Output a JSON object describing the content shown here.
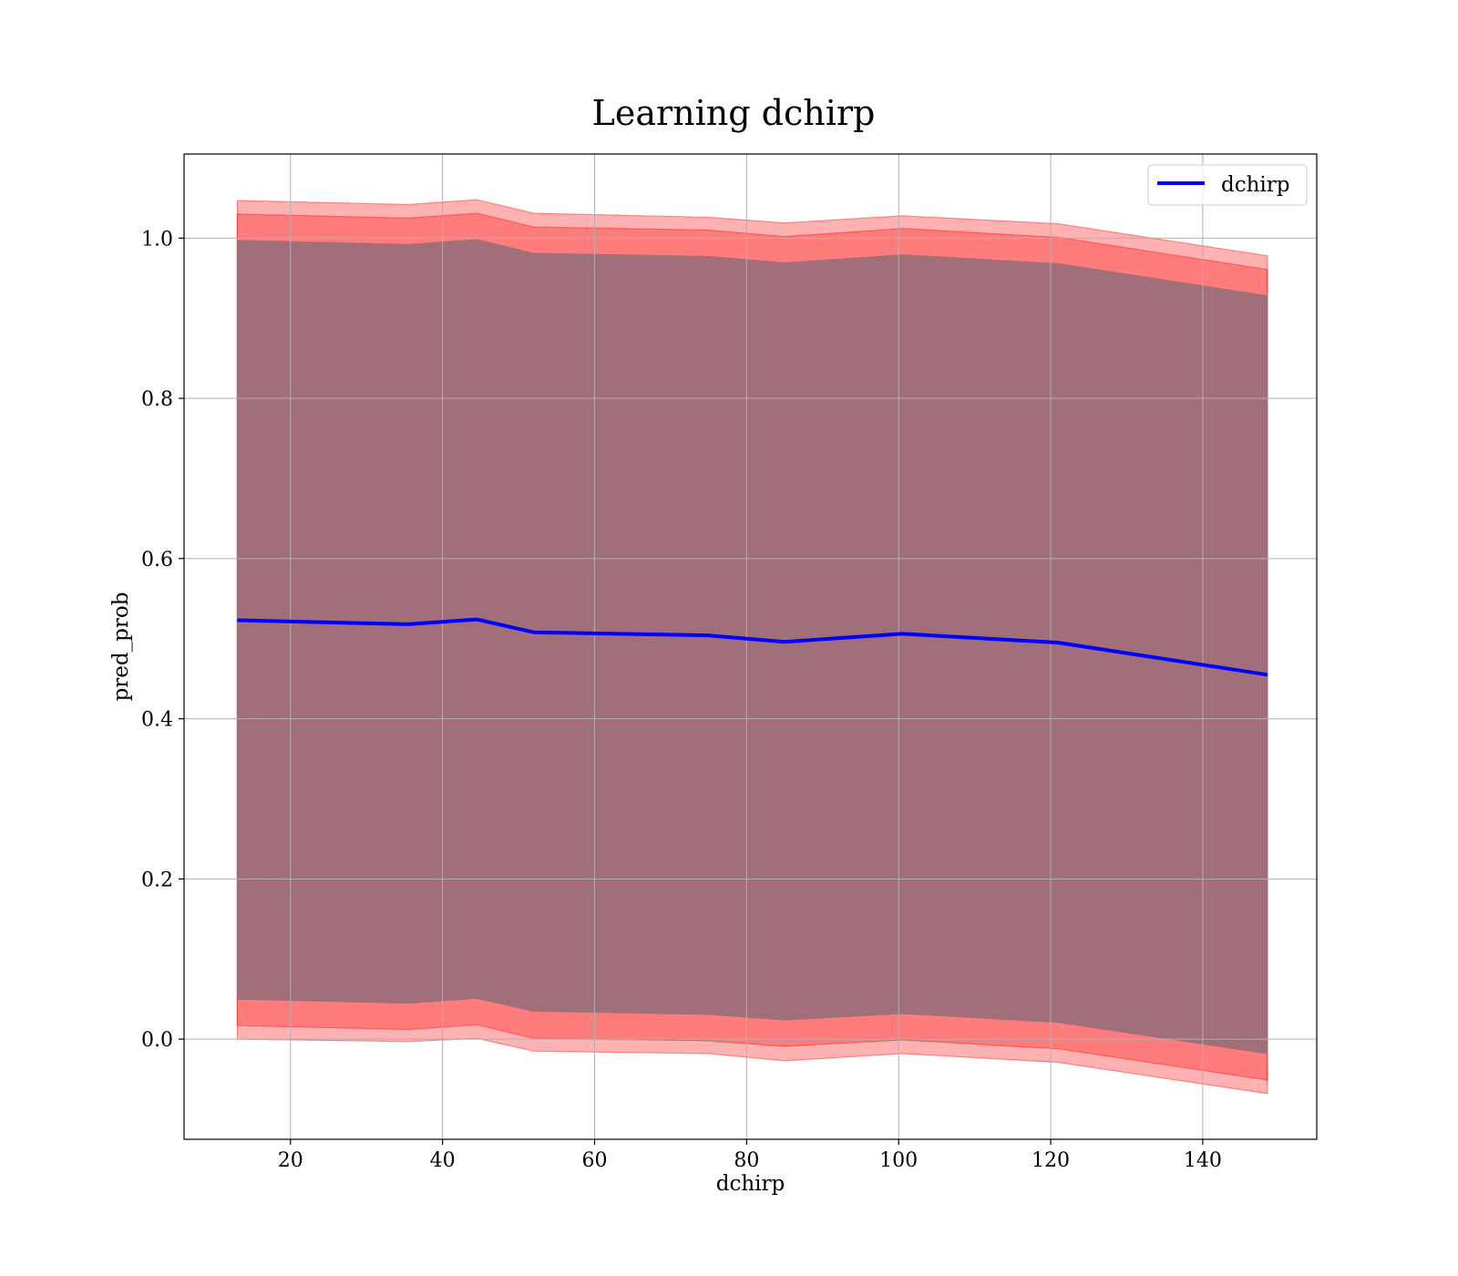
{
  "chart_data": {
    "type": "line",
    "title": "Learning dchirp",
    "xlabel": "dchirp",
    "ylabel": "pred_prob",
    "xlim": [
      6,
      155
    ],
    "ylim": [
      -0.125,
      1.105
    ],
    "xticks": [
      20,
      40,
      60,
      80,
      100,
      120,
      140
    ],
    "yticks": [
      0.0,
      0.2,
      0.4,
      0.6,
      0.8,
      1.0
    ],
    "grid": true,
    "legend_position": "top-right",
    "x": [
      13,
      35.5,
      44.5,
      52,
      75,
      85,
      100.5,
      121,
      148.5
    ],
    "series": [
      {
        "name": "dchirp",
        "color": "#0000ff",
        "values": [
          0.523,
          0.518,
          0.524,
          0.508,
          0.504,
          0.496,
          0.506,
          0.495,
          0.455
        ]
      }
    ],
    "bands": [
      {
        "color": "#ff0000",
        "opacity": 0.3,
        "lower": [
          0.0,
          -0.003,
          0.001,
          -0.015,
          -0.018,
          -0.027,
          -0.018,
          -0.029,
          -0.068
        ],
        "upper": [
          1.047,
          1.042,
          1.048,
          1.031,
          1.026,
          1.019,
          1.028,
          1.018,
          0.978
        ]
      },
      {
        "color": "#ff0000",
        "opacity": 0.3,
        "lower": [
          0.017,
          0.012,
          0.018,
          0.001,
          -0.002,
          -0.009,
          -0.001,
          -0.012,
          -0.051
        ],
        "upper": [
          1.03,
          1.025,
          1.031,
          1.014,
          1.01,
          1.002,
          1.012,
          1.001,
          0.961
        ]
      },
      {
        "color": "#a16f7a",
        "opacity": 1.0,
        "lower": [
          0.05,
          0.045,
          0.051,
          0.035,
          0.031,
          0.024,
          0.032,
          0.021,
          -0.018
        ],
        "upper": [
          0.997,
          0.992,
          0.998,
          0.981,
          0.977,
          0.969,
          0.979,
          0.968,
          0.928
        ]
      }
    ]
  }
}
